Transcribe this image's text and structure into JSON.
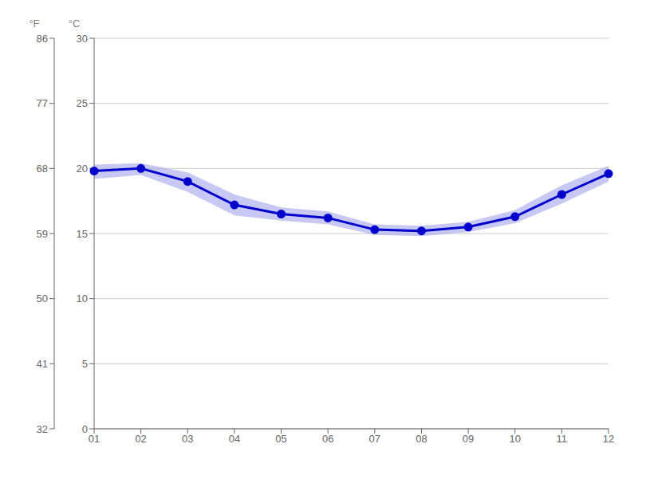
{
  "chart_data": {
    "type": "line",
    "categories": [
      "01",
      "02",
      "03",
      "04",
      "05",
      "06",
      "07",
      "08",
      "09",
      "10",
      "11",
      "12"
    ],
    "series": [
      {
        "type": "band",
        "color": "#aaaaee",
        "lower": [
          19.2,
          19.5,
          18.2,
          16.4,
          16.0,
          15.7,
          14.9,
          14.8,
          15.1,
          15.8,
          17.3,
          19.0
        ],
        "upper": [
          20.3,
          20.4,
          19.7,
          18.0,
          17.0,
          16.7,
          15.7,
          15.6,
          15.9,
          16.8,
          18.7,
          20.2
        ]
      },
      {
        "type": "line",
        "color": "#0000cc",
        "marker": "circle",
        "values": [
          19.8,
          20.0,
          19.0,
          17.2,
          16.5,
          16.2,
          15.3,
          15.2,
          15.5,
          16.3,
          18.0,
          19.6
        ]
      }
    ],
    "ylim": [
      0,
      30
    ],
    "yticks": [
      0,
      5,
      10,
      15,
      20,
      25,
      30
    ],
    "y_label": "°C",
    "y2lim": [
      32,
      86
    ],
    "y2ticks": [
      32,
      41,
      50,
      59,
      68,
      77,
      86
    ],
    "y2_label": "°F",
    "grid": true
  }
}
